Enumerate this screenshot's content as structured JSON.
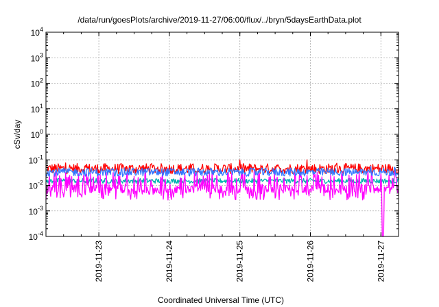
{
  "chart_data": {
    "type": "line",
    "title": "/data/run/goesPlots/archive/2019-11-27/06:00/flux/../bryn/5daysEarthData.plot",
    "xlabel": "Coordinated Universal Time (UTC)",
    "ylabel": "cSv/day",
    "y_scale": "log",
    "ylim": [
      0.0001,
      10000
    ],
    "y_ticks": [
      {
        "value": 0.0001,
        "base": "10",
        "exp": "-4"
      },
      {
        "value": 0.001,
        "base": "10",
        "exp": "-3"
      },
      {
        "value": 0.01,
        "base": "10",
        "exp": "-2"
      },
      {
        "value": 0.1,
        "base": "10",
        "exp": "-1"
      },
      {
        "value": 1,
        "base": "10",
        "exp": "0"
      },
      {
        "value": 10,
        "base": "10",
        "exp": "1"
      },
      {
        "value": 100,
        "base": "10",
        "exp": "2"
      },
      {
        "value": 1000,
        "base": "10",
        "exp": "3"
      },
      {
        "value": 10000,
        "base": "10",
        "exp": "4"
      }
    ],
    "xlim": [
      "2019-11-22T06:00",
      "2019-11-27T06:00"
    ],
    "x_ticks": [
      "2019-11-23",
      "2019-11-24",
      "2019-11-25",
      "2019-11-26",
      "2019-11-27"
    ],
    "grid": true,
    "series": [
      {
        "color": "#ff0000",
        "baseline": 0.045,
        "spread": 1.6,
        "spike_prob": 0.03,
        "spike": 1.8
      },
      {
        "color": "#00b0b0",
        "baseline": 0.015,
        "spread": 1.25,
        "spike_prob": 0.0,
        "spike": 1.0
      },
      {
        "color": "#ff00ff",
        "baseline": 0.0075,
        "spread": 1.5,
        "spike_prob": 0.45,
        "spike": 3.2
      },
      {
        "color": "#3377ff",
        "baseline": 0.033,
        "spread": 1.45,
        "spike_prob": 0.02,
        "spike": 1.8
      }
    ],
    "dropout": {
      "series": 2,
      "x": "2019-11-27T00:40",
      "value": 0.0001
    }
  }
}
